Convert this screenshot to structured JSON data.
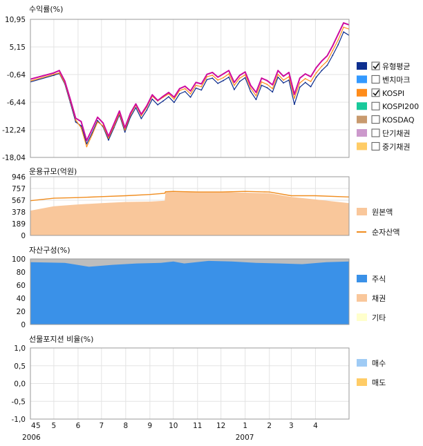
{
  "chart_data": [
    {
      "id": "returns",
      "type": "line",
      "title": "수익률(%)",
      "yticks": [
        "10,95",
        "5,15",
        "-0,64",
        "-6,44",
        "-12,24",
        "-18,04"
      ],
      "ylim": [
        -18.04,
        10.95
      ],
      "grid": true,
      "legend_position": "right",
      "x": [
        "2006-04-01",
        "2006-05-01",
        "2006-05-08",
        "2006-05-15",
        "2006-05-22",
        "2006-05-29",
        "2006-06-05",
        "2006-06-12",
        "2006-06-19",
        "2006-06-26",
        "2006-07-03",
        "2006-07-10",
        "2006-07-17",
        "2006-07-24",
        "2006-07-31",
        "2006-08-07",
        "2006-08-14",
        "2006-08-21",
        "2006-08-28",
        "2006-09-04",
        "2006-09-11",
        "2006-09-18",
        "2006-09-25",
        "2006-10-02",
        "2006-10-09",
        "2006-10-16",
        "2006-10-23",
        "2006-10-30",
        "2006-11-06",
        "2006-11-13",
        "2006-11-20",
        "2006-11-27",
        "2006-12-04",
        "2006-12-11",
        "2006-12-18",
        "2006-12-25",
        "2007-01-01",
        "2007-01-08",
        "2007-01-15",
        "2007-01-22",
        "2007-01-29",
        "2007-02-05",
        "2007-02-12",
        "2007-02-19",
        "2007-02-26",
        "2007-03-05",
        "2007-03-12",
        "2007-03-19",
        "2007-03-26",
        "2007-04-02",
        "2007-04-09",
        "2007-04-16",
        "2007-04-23",
        "2007-04-30",
        "2007-05-07",
        "2007-05-14"
      ],
      "series": [
        {
          "name": "유형평균",
          "color": "#0a2a8c",
          "checked": true,
          "values": [
            -2.2,
            -0.8,
            -0.4,
            -2.6,
            -6.5,
            -10.6,
            -11.4,
            -15.2,
            -12.9,
            -10.3,
            -11.6,
            -14.4,
            -11.8,
            -9.1,
            -12.7,
            -9.6,
            -7.6,
            -9.9,
            -8.1,
            -5.8,
            -7.0,
            -6.2,
            -5.3,
            -6.5,
            -4.7,
            -4.2,
            -5.4,
            -3.5,
            -3.9,
            -1.7,
            -1.4,
            -2.5,
            -1.9,
            -1.2,
            -3.8,
            -2.1,
            -1.3,
            -4.2,
            -5.9,
            -2.9,
            -3.4,
            -4.3,
            -1.2,
            -2.4,
            -1.8,
            -6.9,
            -3.3,
            -2.3,
            -3.2,
            -1.2,
            0.2,
            1.3,
            3.4,
            5.6,
            8.3,
            7.6
          ]
        },
        {
          "name": "KOSPI",
          "color": "#ff8c1a",
          "checked": true,
          "values": [
            -2.0,
            -0.6,
            -0.3,
            -2.4,
            -6.2,
            -10.2,
            -11.8,
            -15.8,
            -13.3,
            -10.6,
            -11.4,
            -14.0,
            -11.5,
            -8.8,
            -12.3,
            -9.2,
            -7.1,
            -9.3,
            -7.5,
            -5.2,
            -6.2,
            -5.4,
            -4.7,
            -5.8,
            -4.0,
            -3.6,
            -4.7,
            -2.9,
            -3.2,
            -1.1,
            -0.8,
            -1.8,
            -1.3,
            -0.5,
            -2.9,
            -1.4,
            -0.7,
            -3.5,
            -5.1,
            -2.2,
            -2.7,
            -3.6,
            -0.6,
            -1.8,
            -1.1,
            -5.6,
            -2.4,
            -1.5,
            -2.1,
            -0.3,
            1.1,
            2.2,
            4.4,
            6.6,
            9.3,
            8.9
          ]
        },
        {
          "name": "벤치마크",
          "color": "#cc0a9e",
          "checked": false,
          "values": [
            -1.6,
            -0.3,
            0.2,
            -2.0,
            -5.8,
            -9.8,
            -10.5,
            -14.5,
            -12.1,
            -9.6,
            -10.8,
            -13.6,
            -11.0,
            -8.3,
            -11.8,
            -8.8,
            -6.8,
            -9.0,
            -7.2,
            -4.9,
            -6.1,
            -5.2,
            -4.4,
            -5.4,
            -3.6,
            -3.1,
            -4.1,
            -2.3,
            -2.6,
            -0.6,
            -0.2,
            -1.2,
            -0.5,
            0.2,
            -2.3,
            -0.8,
            -0.1,
            -2.9,
            -4.4,
            -1.4,
            -1.9,
            -2.8,
            0.2,
            -1.0,
            -0.2,
            -4.8,
            -1.4,
            -0.5,
            -1.1,
            0.8,
            2.2,
            3.3,
            5.4,
            7.8,
            10.2,
            9.8
          ]
        }
      ],
      "legend": [
        {
          "label": "유형평균",
          "color": "#0d2f8f",
          "checked": true
        },
        {
          "label": "벤치마크",
          "color": "#3399ff",
          "checked": false
        },
        {
          "label": "KOSPI",
          "color": "#ff8c1a",
          "checked": true
        },
        {
          "label": "KOSPI200",
          "color": "#19c99b",
          "checked": false
        },
        {
          "label": "KOSDAQ",
          "color": "#c89a6e",
          "checked": false
        },
        {
          "label": "단기채권",
          "color": "#cc99cc",
          "checked": false
        },
        {
          "label": "중기채권",
          "color": "#ffcc66",
          "checked": false
        }
      ]
    },
    {
      "id": "aum",
      "type": "area",
      "title": "운용규모(억원)",
      "yticks": [
        "946",
        "757",
        "567",
        "378",
        "189",
        "0"
      ],
      "ylim": [
        0,
        946
      ],
      "grid": true,
      "legend_position": "right",
      "x": [
        "2006-04-01",
        "2006-05-01",
        "2006-06-01",
        "2006-07-01",
        "2006-08-01",
        "2006-09-01",
        "2006-09-20",
        "2006-09-21",
        "2006-10-01",
        "2006-11-01",
        "2006-12-01",
        "2007-01-01",
        "2007-02-01",
        "2007-03-01",
        "2007-04-01",
        "2007-05-14"
      ],
      "series": [
        {
          "name": "원본액",
          "color": "#f9c79b",
          "kind": "area",
          "values": [
            400,
            470,
            500,
            520,
            540,
            545,
            560,
            705,
            700,
            700,
            700,
            690,
            680,
            620,
            580,
            520
          ]
        },
        {
          "name": "순자산액",
          "color": "#f08c1e",
          "kind": "line",
          "values": [
            560,
            600,
            610,
            625,
            640,
            660,
            680,
            705,
            710,
            700,
            700,
            710,
            700,
            640,
            640,
            620
          ]
        }
      ],
      "legend": [
        {
          "label": "원본액",
          "color": "#f9c79b",
          "kind": "area"
        },
        {
          "label": "순자산액",
          "color": "#f08c1e",
          "kind": "line"
        }
      ]
    },
    {
      "id": "assets",
      "type": "area",
      "title": "자산구성(%)",
      "yticks": [
        "100",
        "80",
        "60",
        "40",
        "20",
        "0"
      ],
      "ylim": [
        0,
        100
      ],
      "grid": true,
      "legend_position": "right",
      "x": [
        "2006-04-01",
        "2006-05-15",
        "2006-06-15",
        "2006-07-15",
        "2006-08-15",
        "2006-09-15",
        "2006-10-01",
        "2006-10-15",
        "2006-11-15",
        "2006-12-15",
        "2007-01-15",
        "2007-02-15",
        "2007-03-15",
        "2007-04-15",
        "2007-05-14"
      ],
      "series": [
        {
          "name": "주식",
          "color": "#3a91e8",
          "values": [
            95,
            94,
            88,
            91,
            93,
            94,
            96,
            93,
            97,
            96,
            94,
            93,
            92,
            95,
            96
          ]
        },
        {
          "name": "기타",
          "color": "#bdbdbd",
          "values": [
            5,
            6,
            12,
            9,
            7,
            6,
            4,
            7,
            3,
            4,
            6,
            7,
            8,
            5,
            4
          ]
        }
      ],
      "legend": [
        {
          "label": "주식",
          "color": "#3a91e8"
        },
        {
          "label": "채권",
          "color": "#f9c79b"
        },
        {
          "label": "기타",
          "color": "#ffffcc"
        }
      ]
    },
    {
      "id": "futures",
      "type": "bar",
      "title": "선물포지션 비율(%)",
      "yticks": [
        "1,0",
        "0,5",
        "0,0",
        "-0,5",
        "-1,0"
      ],
      "ylim": [
        -1.0,
        1.0
      ],
      "grid": true,
      "legend_position": "right",
      "series": [],
      "legend": [
        {
          "label": "매수",
          "color": "#9fcbf5"
        },
        {
          "label": "매도",
          "color": "#ffcc66"
        }
      ]
    }
  ],
  "x_axis": {
    "months": [
      "4",
      "5",
      "6",
      "7",
      "8",
      "9",
      "10",
      "11",
      "12",
      "1",
      "2",
      "3",
      "4"
    ],
    "years": [
      "2006",
      "2007"
    ]
  }
}
